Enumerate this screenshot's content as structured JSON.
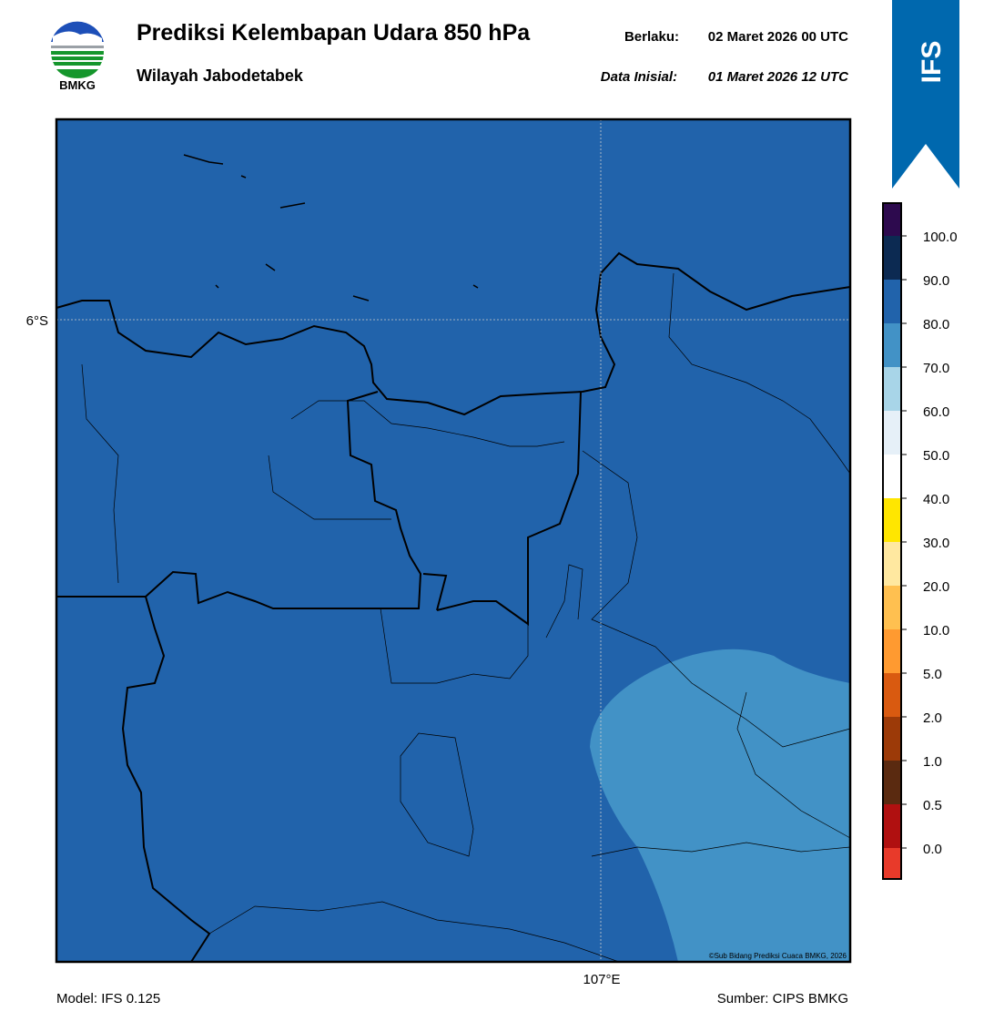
{
  "header": {
    "title": "Prediksi Kelembapan Udara 850 hPa",
    "subtitle": "Wilayah Jabodetabek",
    "valid_label": "Berlaku:",
    "valid_date": "02 Maret 2026 00 UTC",
    "init_label": "Data Inisial:",
    "init_date": "01 Maret 2026 12 UTC",
    "logo_text": "BMKG",
    "badge": "IFS"
  },
  "map": {
    "lat_label": "6°S",
    "lon_label": "107°E",
    "copyright": "©Sub Bidang Prediksi Cuaca BMKG, 2026"
  },
  "colorbar": {
    "labels": [
      "100.0",
      "90.0",
      "80.0",
      "70.0",
      "60.0",
      "50.0",
      "40.0",
      "30.0",
      "20.0",
      "10.0",
      "5.0",
      "2.0",
      "1.0",
      "0.5",
      "0.0"
    ]
  },
  "footer": {
    "model": "Model: IFS 0.125",
    "source": "Sumber: CIPS BMKG"
  }
}
